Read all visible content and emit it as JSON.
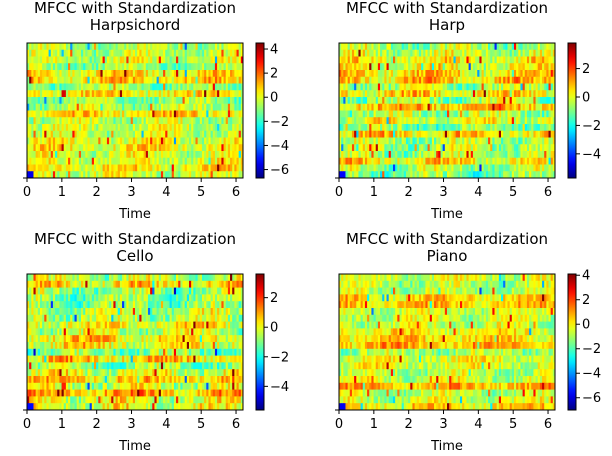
{
  "chart_data": [
    {
      "type": "heatmap",
      "title": "MFCC with Standardization\nHarpsichord",
      "xlabel": "Time",
      "ylabel": "",
      "xlim": [
        0,
        6.2
      ],
      "xticks": [
        0,
        1,
        2,
        3,
        4,
        5,
        6
      ],
      "colorbar": {
        "range": [
          -6.7,
          4.5
        ],
        "ticks": [
          4,
          2,
          0,
          -2,
          -4,
          -6
        ]
      },
      "colormap": "jet",
      "n_coefficients": 20,
      "n_frames": 100,
      "seed": 11
    },
    {
      "type": "heatmap",
      "title": "MFCC with Standardization\nHarp",
      "xlabel": "Time",
      "ylabel": "",
      "xlim": [
        0,
        6.2
      ],
      "xticks": [
        0,
        1,
        2,
        3,
        4,
        5,
        6
      ],
      "colorbar": {
        "range": [
          -5.7,
          3.8
        ],
        "ticks": [
          2,
          0,
          -2,
          -4
        ]
      },
      "colormap": "jet",
      "n_coefficients": 20,
      "n_frames": 100,
      "seed": 23
    },
    {
      "type": "heatmap",
      "title": "MFCC with Standardization\nCello",
      "xlabel": "Time",
      "ylabel": "",
      "xlim": [
        0,
        6.2
      ],
      "xticks": [
        0,
        1,
        2,
        3,
        4,
        5,
        6
      ],
      "colorbar": {
        "range": [
          -5.6,
          3.6
        ],
        "ticks": [
          2,
          0,
          -2,
          -4
        ]
      },
      "colormap": "jet",
      "n_coefficients": 20,
      "n_frames": 100,
      "seed": 37
    },
    {
      "type": "heatmap",
      "title": "MFCC with Standardization\nPiano",
      "xlabel": "Time",
      "ylabel": "",
      "xlim": [
        0,
        6.2
      ],
      "xticks": [
        0,
        1,
        2,
        3,
        4,
        5,
        6
      ],
      "colorbar": {
        "range": [
          -7.0,
          4.1
        ],
        "ticks": [
          4,
          2,
          0,
          -2,
          -4,
          -6
        ]
      },
      "colormap": "jet",
      "n_coefficients": 20,
      "n_frames": 100,
      "seed": 53
    }
  ]
}
